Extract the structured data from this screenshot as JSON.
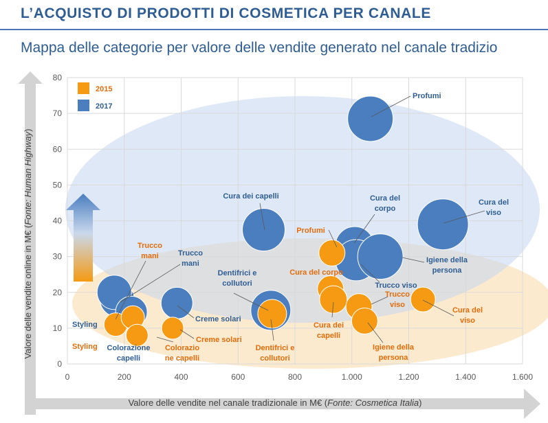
{
  "header": {
    "title": "L’ACQUISTO DI PRODOTTI DI COSMETICA PER CANALE",
    "subtitle": "Mappa delle categorie per valore delle vendite generato nel canale tradizio"
  },
  "colors": {
    "orange": "#f59a12",
    "blue": "#4a7ebf",
    "title_blue": "#2e5d94",
    "label_orange": "#e46c0a",
    "label_blue": "#2e5d94"
  },
  "chart_data": {
    "type": "scatter",
    "xlabel_main": "Valore delle vendite nel canale tradizionale in M€ (",
    "xlabel_source": "Fonte: Cosmetica Italia",
    "xlabel_end": ")",
    "ylabel_main": "Valore delle vendite online in M€ (",
    "ylabel_source": "Fonte: Human Highway",
    "ylabel_end": ")",
    "xlim": [
      0,
      1600
    ],
    "ylim": [
      0,
      80
    ],
    "x_ticks": [
      0,
      200,
      400,
      600,
      800,
      1000,
      1200,
      1400,
      1600
    ],
    "x_tick_labels": [
      "0",
      "200",
      "400",
      "600",
      "800",
      "1.000",
      "1.200",
      "1.400",
      "1.600"
    ],
    "y_ticks": [
      0,
      10,
      20,
      30,
      40,
      50,
      60,
      70,
      80
    ],
    "y_tick_labels": [
      "0",
      "10",
      "20",
      "30",
      "40",
      "50",
      "60",
      "70",
      "80"
    ],
    "grid": true,
    "legend_position": "top-left",
    "series": [
      {
        "name": "2015",
        "color": "#f59a12",
        "points": [
          {
            "label": "Styling",
            "x": 170,
            "y": 11,
            "size": 17
          },
          {
            "label": "Trucco mani",
            "x": 230,
            "y": 13,
            "size": 17
          },
          {
            "label": "Colorazione capelli",
            "x": 245,
            "y": 8,
            "size": 16
          },
          {
            "label": "Creme solari",
            "x": 370,
            "y": 10,
            "size": 16
          },
          {
            "label": "Profumi",
            "x": 930,
            "y": 31,
            "size": 19
          },
          {
            "label": "Cura del corpo",
            "x": 925,
            "y": 21,
            "size": 19
          },
          {
            "label": "Cura dei capelli",
            "x": 935,
            "y": 18,
            "size": 20
          },
          {
            "label": "Trucco viso",
            "x": 1025,
            "y": 16,
            "size": 19
          },
          {
            "label": "Igiene della persona",
            "x": 1045,
            "y": 12,
            "size": 19
          },
          {
            "label": "Cura del viso",
            "x": 1250,
            "y": 18,
            "size": 18
          },
          {
            "label": "Dentifrici e collutori",
            "x": 720,
            "y": 14,
            "size": 21
          }
        ]
      },
      {
        "name": "2017",
        "color": "#4a7ebf",
        "points": [
          {
            "label": "Profumi",
            "x": 1065,
            "y": 68.5,
            "size": 33
          },
          {
            "label": "Cura del viso",
            "x": 1320,
            "y": 39,
            "size": 37
          },
          {
            "label": "Cura dei capelli",
            "x": 690,
            "y": 37.5,
            "size": 31
          },
          {
            "label": "Cura del corpo",
            "x": 1010,
            "y": 33,
            "size": 28
          },
          {
            "label": "Trucco viso",
            "x": 1015,
            "y": 29,
            "size": 30
          },
          {
            "label": "Igiene della persona",
            "x": 1100,
            "y": 30,
            "size": 33
          },
          {
            "label": "Trucco mani",
            "x": 175,
            "y": 18,
            "size": 25
          },
          {
            "label": "Styling",
            "x": 165,
            "y": 20,
            "size": 25
          },
          {
            "label": "Colorazione capelli",
            "x": 225,
            "y": 14.5,
            "size": 23
          },
          {
            "label": "Creme solari",
            "x": 385,
            "y": 17,
            "size": 23
          },
          {
            "label": "Dentifrici e collutori",
            "x": 715,
            "y": 15,
            "size": 29
          }
        ]
      }
    ],
    "labels_2015": [
      {
        "key": "styling_lines",
        "lines": [
          "Styling"
        ]
      },
      {
        "key": "trucco_mani_lines",
        "lines": [
          "Trucco",
          "mani"
        ]
      },
      {
        "key": "colorazione_lines",
        "lines": [
          "Colorazio",
          "ne capelli"
        ]
      },
      {
        "key": "creme_lines",
        "lines": [
          "Creme solari"
        ]
      },
      {
        "key": "profumi_lines",
        "lines": [
          "Profumi"
        ]
      },
      {
        "key": "corpo_lines",
        "lines": [
          "Cura del corpo"
        ]
      },
      {
        "key": "capelli_lines",
        "lines": [
          "Cura dei",
          "capelli"
        ]
      },
      {
        "key": "trucco_viso_lines",
        "lines": [
          "Trucco",
          "viso"
        ]
      },
      {
        "key": "igiene_lines",
        "lines": [
          "Igiene della",
          "persona"
        ]
      },
      {
        "key": "viso_lines",
        "lines": [
          "Cura del",
          "viso"
        ]
      },
      {
        "key": "dentifrici_lines",
        "lines": [
          "Dentifrici e",
          "collutori"
        ]
      }
    ],
    "labels_2017": [
      {
        "key": "profumi_lines",
        "lines": [
          "Profumi"
        ]
      },
      {
        "key": "viso_lines",
        "lines": [
          "Cura del",
          "viso"
        ]
      },
      {
        "key": "capelli_lines",
        "lines": [
          "Cura dei capelli"
        ]
      },
      {
        "key": "corpo_lines",
        "lines": [
          "Cura del",
          "corpo"
        ]
      },
      {
        "key": "trucco_viso_lines",
        "lines": [
          "Trucco viso"
        ]
      },
      {
        "key": "igiene_lines",
        "lines": [
          "Igiene della",
          "persona"
        ]
      },
      {
        "key": "trucco_mani_lines",
        "lines": [
          "Trucco",
          "mani"
        ]
      },
      {
        "key": "styling_lines",
        "lines": [
          "Styling"
        ]
      },
      {
        "key": "colorazione_lines",
        "lines": [
          "Colorazione",
          "capelli"
        ]
      },
      {
        "key": "creme_lines",
        "lines": [
          "Creme solari"
        ]
      },
      {
        "key": "dentifrici_lines",
        "lines": [
          "Dentifrici e",
          "collutori"
        ]
      }
    ]
  }
}
